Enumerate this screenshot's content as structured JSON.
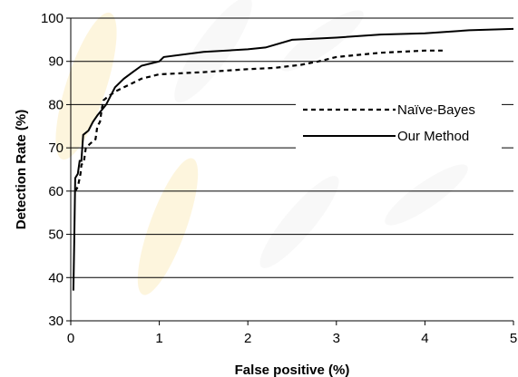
{
  "chart_data": {
    "type": "line",
    "xlabel": "False positive (%)",
    "ylabel": "Detection Rate (%)",
    "xlim": [
      0,
      5
    ],
    "ylim": [
      30,
      100
    ],
    "x_ticks": [
      0,
      1,
      2,
      3,
      4,
      5
    ],
    "y_ticks": [
      30,
      40,
      50,
      60,
      70,
      80,
      90,
      100
    ],
    "grid": "horizontal",
    "legend_position": "right",
    "series": [
      {
        "name": "Naïve-Bayes",
        "style": "dashed",
        "color": "#000000",
        "points": [
          [
            0.05,
            60
          ],
          [
            0.08,
            61
          ],
          [
            0.1,
            63
          ],
          [
            0.11,
            64
          ],
          [
            0.12,
            66
          ],
          [
            0.15,
            67
          ],
          [
            0.17,
            70
          ],
          [
            0.22,
            71
          ],
          [
            0.28,
            72
          ],
          [
            0.3,
            75
          ],
          [
            0.33,
            76
          ],
          [
            0.35,
            79
          ],
          [
            0.37,
            81
          ],
          [
            0.4,
            81.5
          ],
          [
            0.5,
            83
          ],
          [
            0.6,
            84
          ],
          [
            0.7,
            85
          ],
          [
            0.8,
            86
          ],
          [
            1.0,
            87
          ],
          [
            1.5,
            87.5
          ],
          [
            2.0,
            88.2
          ],
          [
            2.3,
            88.5
          ],
          [
            2.6,
            89.2
          ],
          [
            2.8,
            90
          ],
          [
            3.0,
            91
          ],
          [
            3.5,
            92
          ],
          [
            4.0,
            92.5
          ],
          [
            4.2,
            92.5
          ]
        ]
      },
      {
        "name": "Our Method",
        "style": "solid",
        "color": "#000000",
        "points": [
          [
            0.03,
            37
          ],
          [
            0.04,
            49
          ],
          [
            0.05,
            63
          ],
          [
            0.08,
            64
          ],
          [
            0.1,
            67
          ],
          [
            0.12,
            67
          ],
          [
            0.13,
            70
          ],
          [
            0.14,
            73
          ],
          [
            0.2,
            74
          ],
          [
            0.25,
            76
          ],
          [
            0.3,
            77.5
          ],
          [
            0.4,
            80
          ],
          [
            0.5,
            84
          ],
          [
            0.6,
            86
          ],
          [
            0.7,
            87.5
          ],
          [
            0.8,
            89
          ],
          [
            0.9,
            89.5
          ],
          [
            1.0,
            90
          ],
          [
            1.05,
            91
          ],
          [
            1.5,
            92.2
          ],
          [
            2.0,
            92.8
          ],
          [
            2.2,
            93.2
          ],
          [
            2.5,
            95
          ],
          [
            3.0,
            95.5
          ],
          [
            3.5,
            96.2
          ],
          [
            4.0,
            96.5
          ],
          [
            4.5,
            97.2
          ],
          [
            5.0,
            97.5
          ]
        ]
      }
    ]
  }
}
